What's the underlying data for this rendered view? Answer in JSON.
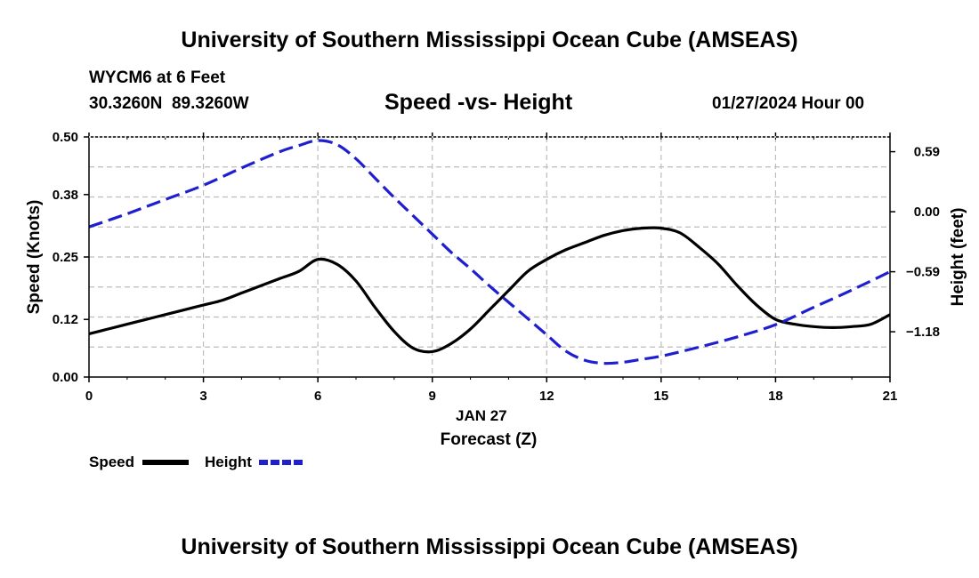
{
  "page": {
    "title": "University of Southern Mississippi Ocean Cube (AMSEAS)",
    "footer_title": "University of Southern Mississippi Ocean Cube (AMSEAS)",
    "station": "WYCM6 at 6 Feet",
    "coords": "30.3260N  89.3260W",
    "subtitle": "Speed -vs- Height",
    "datetime": "01/27/2024 Hour 00"
  },
  "colors": {
    "speed": "#000000",
    "height": "#1f1fd0",
    "grid": "#bdbdbd"
  },
  "chart_data": {
    "type": "line",
    "title": "Speed -vs- Height",
    "xlabel": "Forecast (Z)",
    "xsublabel": "JAN 27",
    "ylabel": "Speed (Knots)",
    "y2label": "Height (feet)",
    "xlim": [
      0,
      21
    ],
    "ylim": [
      0,
      0.5
    ],
    "y2lim": [
      -1.625,
      0.735
    ],
    "xticks": [
      0,
      3,
      6,
      9,
      12,
      15,
      18,
      21
    ],
    "yticks": [
      0.0,
      0.12,
      0.25,
      0.38,
      0.5
    ],
    "ytick_labels": [
      "0.00",
      "0.12",
      "0.25",
      "0.38",
      "0.50"
    ],
    "y2ticks": [
      0.59,
      0.0,
      -0.59,
      -1.18
    ],
    "y2tick_labels": [
      "0.59",
      "0.00",
      "−0.59",
      "−1.18"
    ],
    "grid": true,
    "legend": "bottom-left",
    "series": [
      {
        "name": "Speed",
        "axis": "left",
        "style": "solid",
        "x": [
          0,
          0.5,
          1,
          1.5,
          2,
          2.5,
          3,
          3.5,
          4,
          4.5,
          5,
          5.5,
          6,
          6.5,
          7,
          7.5,
          8,
          8.5,
          9,
          9.5,
          10,
          10.5,
          11,
          11.5,
          12,
          12.5,
          13,
          13.5,
          14,
          14.5,
          15,
          15.5,
          16,
          16.5,
          17,
          17.5,
          18,
          18.5,
          19,
          19.5,
          20,
          20.5,
          21
        ],
        "values": [
          0.09,
          0.1,
          0.11,
          0.12,
          0.13,
          0.14,
          0.15,
          0.16,
          0.175,
          0.19,
          0.205,
          0.22,
          0.245,
          0.235,
          0.2,
          0.145,
          0.095,
          0.06,
          0.053,
          0.07,
          0.1,
          0.14,
          0.18,
          0.22,
          0.245,
          0.265,
          0.28,
          0.295,
          0.305,
          0.31,
          0.31,
          0.3,
          0.27,
          0.235,
          0.19,
          0.15,
          0.12,
          0.11,
          0.105,
          0.103,
          0.105,
          0.11,
          0.13
        ]
      },
      {
        "name": "Height",
        "axis": "right",
        "style": "dashed",
        "x": [
          0,
          1,
          2,
          3,
          4,
          5,
          5.5,
          6,
          6.5,
          7,
          7.5,
          8,
          8.5,
          9,
          9.5,
          10,
          10.5,
          11,
          11.5,
          12,
          12.5,
          13,
          13.5,
          14,
          14.5,
          15,
          16,
          17,
          18,
          19,
          20,
          21
        ],
        "values": [
          -0.15,
          -0.02,
          0.12,
          0.26,
          0.43,
          0.59,
          0.65,
          0.7,
          0.66,
          0.52,
          0.33,
          0.14,
          -0.04,
          -0.22,
          -0.4,
          -0.56,
          -0.73,
          -0.89,
          -1.05,
          -1.21,
          -1.37,
          -1.46,
          -1.49,
          -1.48,
          -1.45,
          -1.42,
          -1.33,
          -1.23,
          -1.11,
          -0.94,
          -0.77,
          -0.59
        ]
      }
    ]
  }
}
